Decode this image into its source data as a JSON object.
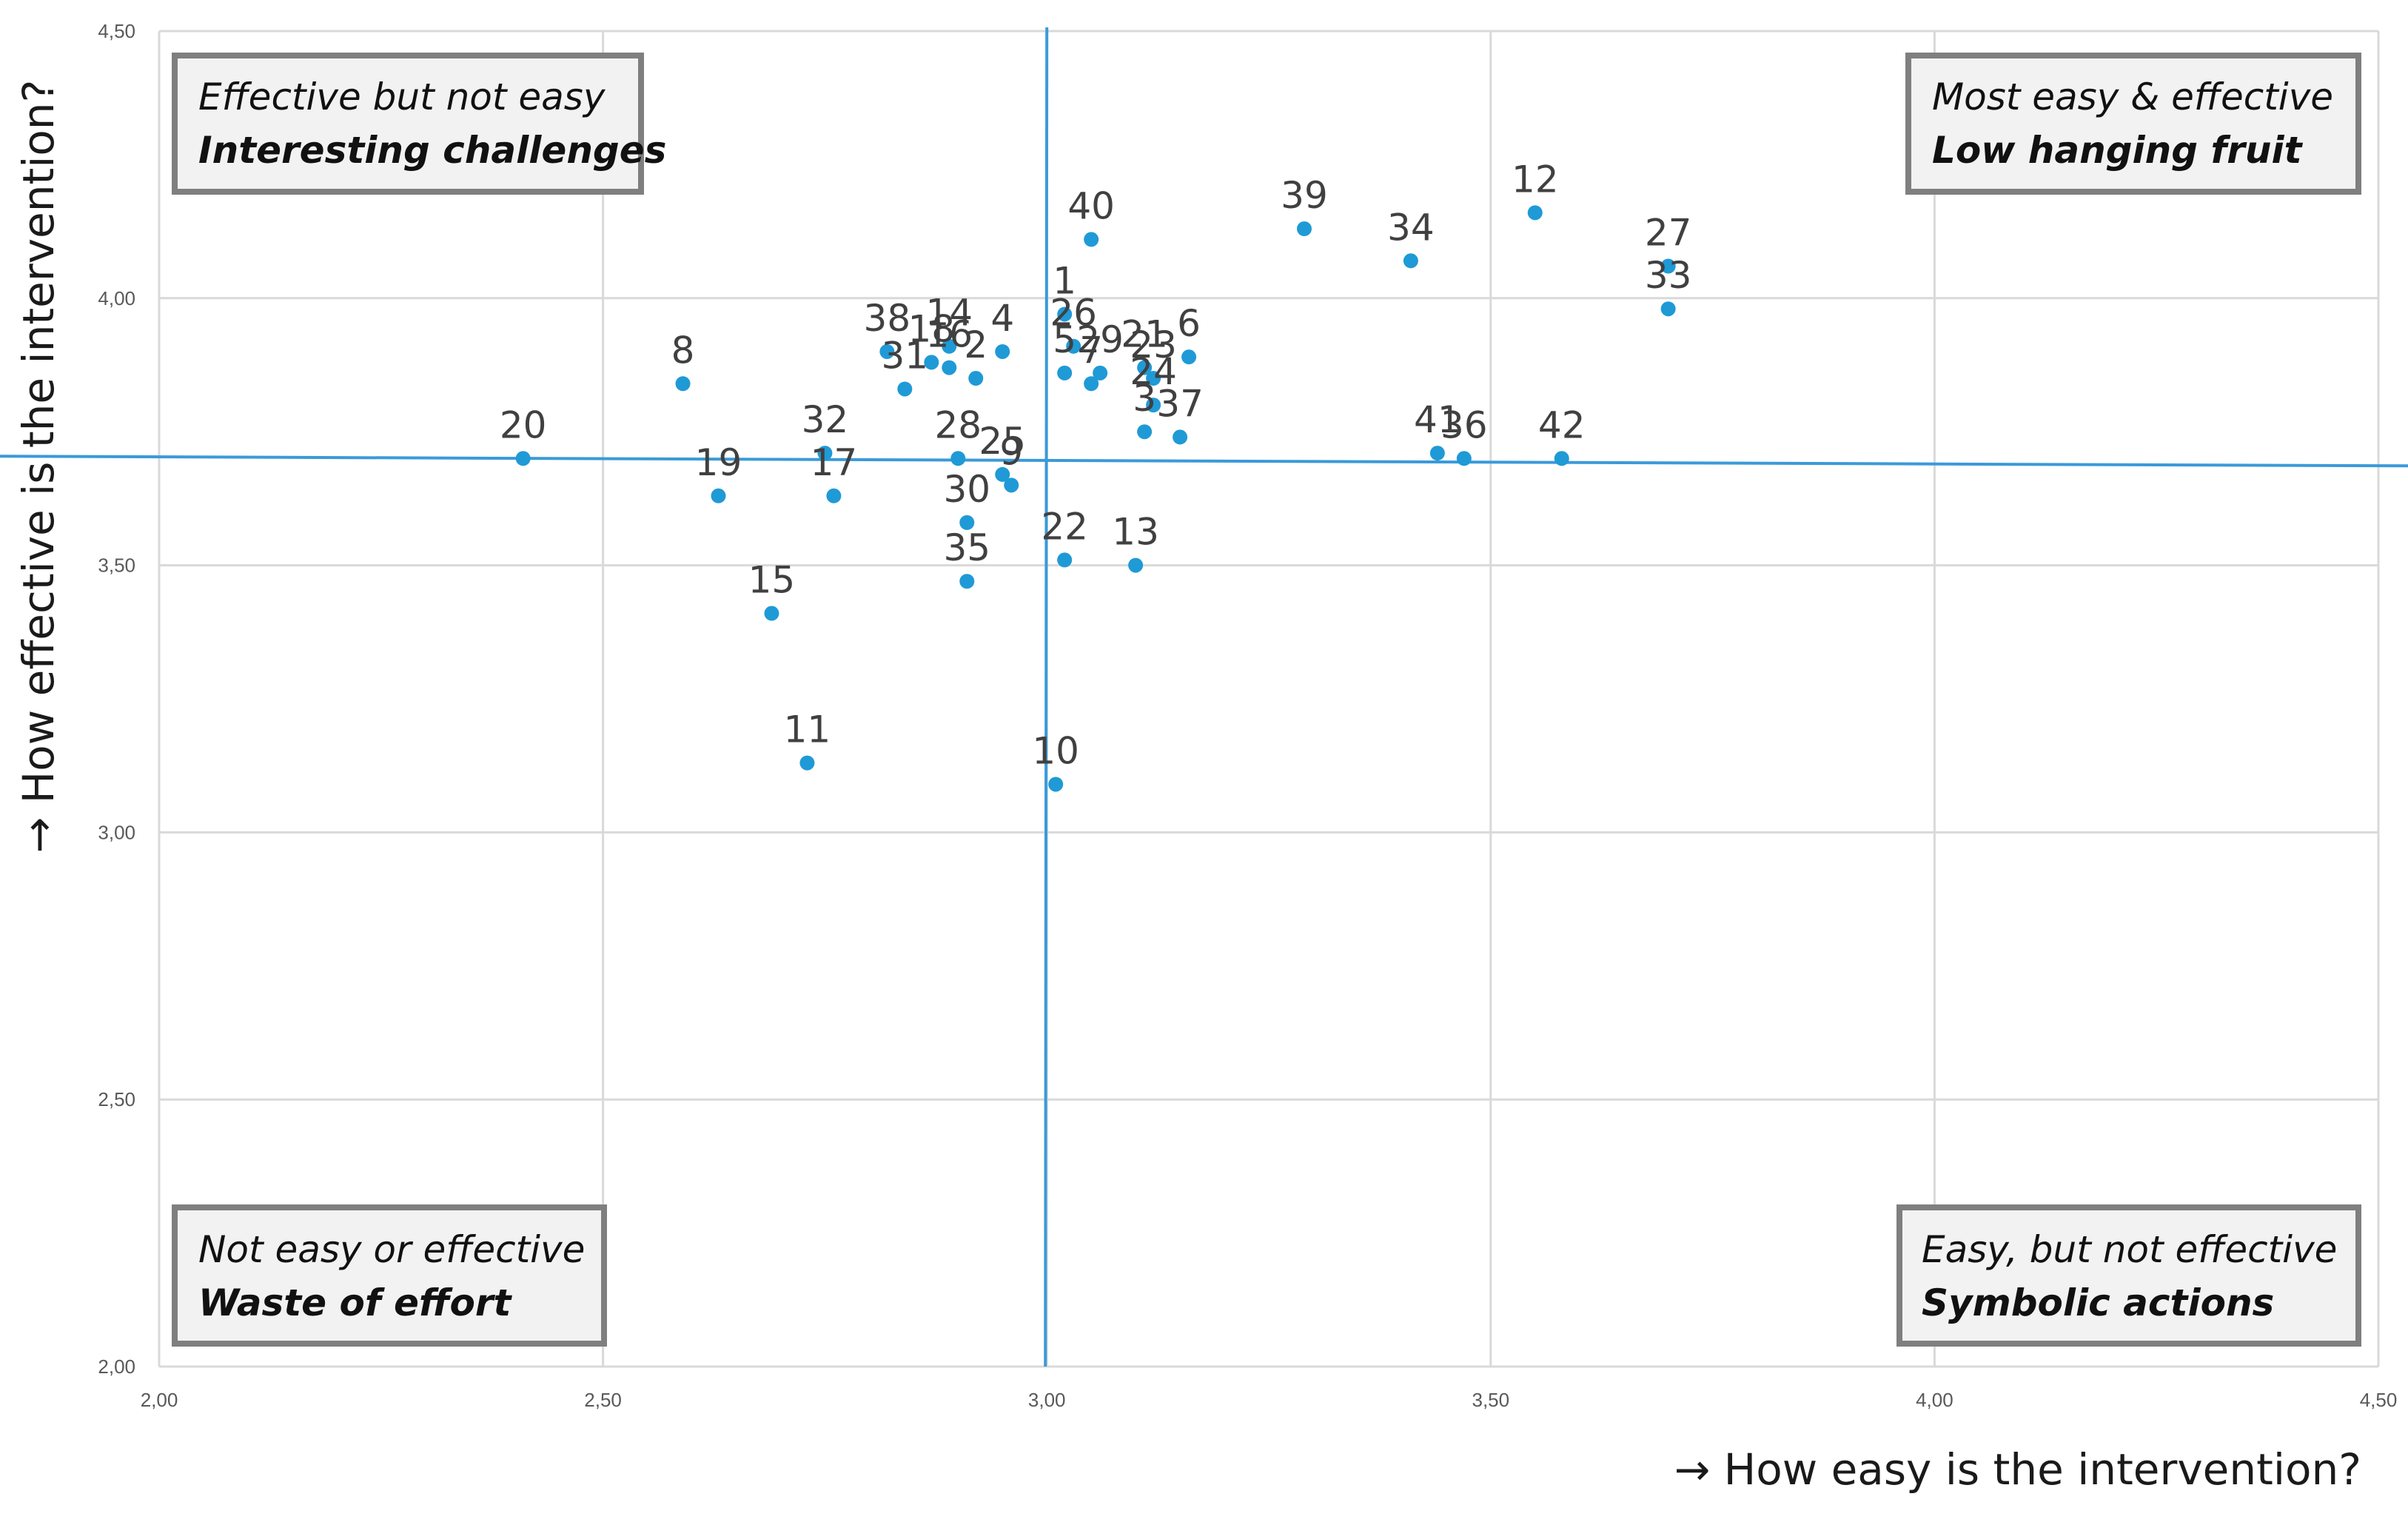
{
  "chart_data": {
    "type": "scatter",
    "title": "",
    "xlabel": "→ How easy is the intervention?",
    "ylabel": "→ How effective is the intervention?",
    "xlim": [
      2.0,
      4.5
    ],
    "ylim": [
      2.0,
      4.5
    ],
    "x_ticks": [
      "2,00",
      "2,50",
      "3,00",
      "3,50",
      "4,00",
      "4,50"
    ],
    "y_ticks": [
      "2,00",
      "2,50",
      "3,00",
      "3,50",
      "4,00",
      "4,50"
    ],
    "grid": true,
    "reference_lines": {
      "x": 3.0,
      "y": 3.7
    },
    "point_color": "#1f9ad6",
    "line_color": "#3a9ad9",
    "points": [
      {
        "label": "20",
        "x": 2.41,
        "y": 3.7
      },
      {
        "label": "8",
        "x": 2.59,
        "y": 3.84
      },
      {
        "label": "19",
        "x": 2.63,
        "y": 3.63
      },
      {
        "label": "15",
        "x": 2.69,
        "y": 3.41
      },
      {
        "label": "11",
        "x": 2.73,
        "y": 3.13
      },
      {
        "label": "32",
        "x": 2.75,
        "y": 3.71
      },
      {
        "label": "17",
        "x": 2.76,
        "y": 3.63
      },
      {
        "label": "38",
        "x": 2.82,
        "y": 3.9
      },
      {
        "label": "31",
        "x": 2.84,
        "y": 3.83
      },
      {
        "label": "18",
        "x": 2.87,
        "y": 3.88
      },
      {
        "label": "14",
        "x": 2.89,
        "y": 3.91
      },
      {
        "label": "16",
        "x": 2.89,
        "y": 3.87
      },
      {
        "label": "2",
        "x": 2.92,
        "y": 3.85
      },
      {
        "label": "4",
        "x": 2.95,
        "y": 3.9
      },
      {
        "label": "28",
        "x": 2.9,
        "y": 3.7
      },
      {
        "label": "25",
        "x": 2.95,
        "y": 3.67
      },
      {
        "label": "9",
        "x": 2.96,
        "y": 3.65
      },
      {
        "label": "30",
        "x": 2.91,
        "y": 3.58
      },
      {
        "label": "35",
        "x": 2.91,
        "y": 3.47
      },
      {
        "label": "1",
        "x": 3.02,
        "y": 3.97
      },
      {
        "label": "26",
        "x": 3.03,
        "y": 3.91
      },
      {
        "label": "40",
        "x": 3.05,
        "y": 4.11
      },
      {
        "label": "5",
        "x": 3.02,
        "y": 3.86
      },
      {
        "label": "7",
        "x": 3.05,
        "y": 3.84
      },
      {
        "label": "29",
        "x": 3.06,
        "y": 3.86
      },
      {
        "label": "22",
        "x": 3.02,
        "y": 3.51
      },
      {
        "label": "10",
        "x": 3.01,
        "y": 3.09
      },
      {
        "label": "13",
        "x": 3.1,
        "y": 3.5
      },
      {
        "label": "21",
        "x": 3.11,
        "y": 3.87
      },
      {
        "label": "23",
        "x": 3.12,
        "y": 3.85
      },
      {
        "label": "24",
        "x": 3.12,
        "y": 3.8
      },
      {
        "label": "3",
        "x": 3.11,
        "y": 3.75
      },
      {
        "label": "37",
        "x": 3.15,
        "y": 3.74
      },
      {
        "label": "6",
        "x": 3.16,
        "y": 3.89
      },
      {
        "label": "39",
        "x": 3.29,
        "y": 4.13
      },
      {
        "label": "34",
        "x": 3.41,
        "y": 4.07
      },
      {
        "label": "41",
        "x": 3.44,
        "y": 3.71
      },
      {
        "label": "36",
        "x": 3.47,
        "y": 3.7
      },
      {
        "label": "12",
        "x": 3.55,
        "y": 4.16
      },
      {
        "label": "42",
        "x": 3.58,
        "y": 3.7
      },
      {
        "label": "27",
        "x": 3.7,
        "y": 4.06
      },
      {
        "label": "33",
        "x": 3.7,
        "y": 3.98
      }
    ],
    "quadrants": {
      "top_left": {
        "line1": "Effective but not easy",
        "line2": "Interesting challenges"
      },
      "top_right": {
        "line1": "Most easy & effective",
        "line2": "Low hanging fruit"
      },
      "bottom_left": {
        "line1": "Not easy or effective",
        "line2": "Waste of effort"
      },
      "bottom_right": {
        "line1": "Easy,  but not effective",
        "line2": "Symbolic actions"
      }
    }
  }
}
